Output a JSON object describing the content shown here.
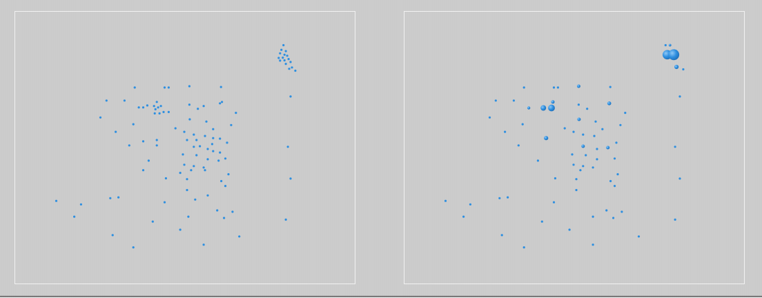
{
  "colors": {
    "background": "#cbcbcb",
    "frame": "#f2f2f2",
    "point": "#2e8fe0",
    "point_dark": "#1f6fb8",
    "point_highlight": "#8fc8f5"
  },
  "chart_data": [
    {
      "type": "scatter",
      "panel": "left",
      "title": "",
      "xlabel": "",
      "ylabel": "",
      "xlim": [
        0,
        100
      ],
      "ylim": [
        0,
        100
      ],
      "grid": false,
      "legend": "none",
      "points": [
        {
          "x": 79.0,
          "y": 87.7
        },
        {
          "x": 78.4,
          "y": 86.0
        },
        {
          "x": 79.7,
          "y": 85.5
        },
        {
          "x": 78.0,
          "y": 84.7
        },
        {
          "x": 79.3,
          "y": 84.2
        },
        {
          "x": 80.1,
          "y": 83.8
        },
        {
          "x": 78.8,
          "y": 83.1
        },
        {
          "x": 77.6,
          "y": 83.0
        },
        {
          "x": 80.5,
          "y": 82.6
        },
        {
          "x": 79.3,
          "y": 82.1
        },
        {
          "x": 78.0,
          "y": 82.0
        },
        {
          "x": 81.1,
          "y": 81.5
        },
        {
          "x": 79.7,
          "y": 80.8
        },
        {
          "x": 81.5,
          "y": 79.5
        },
        {
          "x": 80.7,
          "y": 79.0
        },
        {
          "x": 82.5,
          "y": 78.3
        },
        {
          "x": 81.1,
          "y": 68.8
        },
        {
          "x": 80.3,
          "y": 50.3
        },
        {
          "x": 81.1,
          "y": 38.6
        },
        {
          "x": 79.7,
          "y": 23.5
        },
        {
          "x": 35.2,
          "y": 72.1
        },
        {
          "x": 44.0,
          "y": 72.1
        },
        {
          "x": 45.2,
          "y": 72.1
        },
        {
          "x": 51.3,
          "y": 72.6
        },
        {
          "x": 60.6,
          "y": 72.3
        },
        {
          "x": 26.9,
          "y": 67.3
        },
        {
          "x": 32.2,
          "y": 67.3
        },
        {
          "x": 36.4,
          "y": 64.8
        },
        {
          "x": 37.7,
          "y": 64.8
        },
        {
          "x": 38.9,
          "y": 65.5
        },
        {
          "x": 40.9,
          "y": 65.3
        },
        {
          "x": 41.7,
          "y": 66.8
        },
        {
          "x": 42.9,
          "y": 65.3
        },
        {
          "x": 41.3,
          "y": 64.1
        },
        {
          "x": 42.1,
          "y": 64.8
        },
        {
          "x": 41.1,
          "y": 62.6
        },
        {
          "x": 42.5,
          "y": 62.6
        },
        {
          "x": 43.7,
          "y": 63.1
        },
        {
          "x": 45.2,
          "y": 63.1
        },
        {
          "x": 51.3,
          "y": 65.8
        },
        {
          "x": 53.8,
          "y": 64.3
        },
        {
          "x": 55.5,
          "y": 65.3
        },
        {
          "x": 60.3,
          "y": 66.3
        },
        {
          "x": 60.9,
          "y": 66.8
        },
        {
          "x": 65.0,
          "y": 62.8
        },
        {
          "x": 25.1,
          "y": 61.1
        },
        {
          "x": 51.4,
          "y": 60.4
        },
        {
          "x": 56.3,
          "y": 59.6
        },
        {
          "x": 34.8,
          "y": 58.6
        },
        {
          "x": 47.2,
          "y": 57.1
        },
        {
          "x": 58.3,
          "y": 56.8
        },
        {
          "x": 63.6,
          "y": 58.3
        },
        {
          "x": 29.6,
          "y": 55.8
        },
        {
          "x": 49.8,
          "y": 55.8
        },
        {
          "x": 52.6,
          "y": 54.8
        },
        {
          "x": 55.9,
          "y": 54.3
        },
        {
          "x": 58.3,
          "y": 53.5
        },
        {
          "x": 60.3,
          "y": 53.3
        },
        {
          "x": 37.7,
          "y": 52.3
        },
        {
          "x": 41.7,
          "y": 52.8
        },
        {
          "x": 53.4,
          "y": 52.8
        },
        {
          "x": 58.0,
          "y": 51.3
        },
        {
          "x": 62.4,
          "y": 51.8
        },
        {
          "x": 33.6,
          "y": 50.8
        },
        {
          "x": 41.7,
          "y": 50.8
        },
        {
          "x": 50.6,
          "y": 52.8
        },
        {
          "x": 52.6,
          "y": 50.3
        },
        {
          "x": 54.4,
          "y": 50.5
        },
        {
          "x": 56.7,
          "y": 49.5
        },
        {
          "x": 58.3,
          "y": 48.7
        },
        {
          "x": 60.3,
          "y": 48.2
        },
        {
          "x": 49.4,
          "y": 47.5
        },
        {
          "x": 53.4,
          "y": 47.2
        },
        {
          "x": 56.7,
          "y": 45.7
        },
        {
          "x": 59.9,
          "y": 45.2
        },
        {
          "x": 61.9,
          "y": 46.0
        },
        {
          "x": 39.3,
          "y": 45.2
        },
        {
          "x": 49.8,
          "y": 43.7
        },
        {
          "x": 52.6,
          "y": 43.2
        },
        {
          "x": 55.5,
          "y": 42.7
        },
        {
          "x": 37.7,
          "y": 41.7
        },
        {
          "x": 51.8,
          "y": 41.7
        },
        {
          "x": 55.9,
          "y": 41.7
        },
        {
          "x": 48.6,
          "y": 40.7
        },
        {
          "x": 62.8,
          "y": 40.2
        },
        {
          "x": 44.4,
          "y": 38.7
        },
        {
          "x": 50.6,
          "y": 38.4
        },
        {
          "x": 60.7,
          "y": 37.7
        },
        {
          "x": 61.9,
          "y": 35.9
        },
        {
          "x": 50.6,
          "y": 34.4
        },
        {
          "x": 56.7,
          "y": 32.4
        },
        {
          "x": 53.0,
          "y": 30.9
        },
        {
          "x": 59.5,
          "y": 26.9
        },
        {
          "x": 12.1,
          "y": 30.4
        },
        {
          "x": 19.4,
          "y": 29.1
        },
        {
          "x": 28.0,
          "y": 31.4
        },
        {
          "x": 30.4,
          "y": 31.7
        },
        {
          "x": 44.0,
          "y": 29.9
        },
        {
          "x": 64.0,
          "y": 26.4
        },
        {
          "x": 17.4,
          "y": 24.6
        },
        {
          "x": 40.5,
          "y": 22.8
        },
        {
          "x": 51.0,
          "y": 24.6
        },
        {
          "x": 61.5,
          "y": 24.1
        },
        {
          "x": 48.6,
          "y": 19.8
        },
        {
          "x": 28.7,
          "y": 17.8
        },
        {
          "x": 66.0,
          "y": 17.3
        },
        {
          "x": 34.8,
          "y": 13.3
        },
        {
          "x": 55.5,
          "y": 14.3
        }
      ]
    },
    {
      "type": "scatter",
      "panel": "right",
      "title": "",
      "xlabel": "",
      "ylabel": "",
      "xlim": [
        0,
        100
      ],
      "ylim": [
        0,
        100
      ],
      "grid": false,
      "legend": "none",
      "points": [
        {
          "x": 76.9,
          "y": 87.7,
          "s": 1
        },
        {
          "x": 78.2,
          "y": 87.7,
          "s": 1.2
        },
        {
          "x": 77.4,
          "y": 84.2,
          "s": 4.5
        },
        {
          "x": 79.3,
          "y": 84.2,
          "s": 5.2
        },
        {
          "x": 80.1,
          "y": 79.7,
          "s": 2
        },
        {
          "x": 82.1,
          "y": 78.8,
          "s": 1
        },
        {
          "x": 81.1,
          "y": 68.8,
          "s": 1
        },
        {
          "x": 79.7,
          "y": 50.3,
          "s": 1
        },
        {
          "x": 81.1,
          "y": 38.6,
          "s": 1
        },
        {
          "x": 79.7,
          "y": 23.5,
          "s": 1
        },
        {
          "x": 35.2,
          "y": 72.1,
          "s": 1
        },
        {
          "x": 44.0,
          "y": 72.1,
          "s": 1
        },
        {
          "x": 45.2,
          "y": 72.1,
          "s": 1
        },
        {
          "x": 51.3,
          "y": 72.6,
          "s": 1.6
        },
        {
          "x": 60.6,
          "y": 72.3,
          "s": 1
        },
        {
          "x": 26.9,
          "y": 67.3,
          "s": 1
        },
        {
          "x": 32.2,
          "y": 67.3,
          "s": 1
        },
        {
          "x": 36.6,
          "y": 64.6,
          "s": 1.4
        },
        {
          "x": 40.9,
          "y": 64.6,
          "s": 2.6
        },
        {
          "x": 43.3,
          "y": 64.6,
          "s": 3.2
        },
        {
          "x": 43.7,
          "y": 66.8,
          "s": 1.6
        },
        {
          "x": 51.3,
          "y": 65.8,
          "s": 1
        },
        {
          "x": 53.8,
          "y": 64.3,
          "s": 1
        },
        {
          "x": 60.3,
          "y": 66.3,
          "s": 1.8
        },
        {
          "x": 65.0,
          "y": 62.8,
          "s": 1
        },
        {
          "x": 25.1,
          "y": 61.1,
          "s": 1
        },
        {
          "x": 51.4,
          "y": 60.4,
          "s": 1.6
        },
        {
          "x": 56.3,
          "y": 59.6,
          "s": 1
        },
        {
          "x": 34.8,
          "y": 58.6,
          "s": 1
        },
        {
          "x": 47.2,
          "y": 57.1,
          "s": 1
        },
        {
          "x": 58.3,
          "y": 56.8,
          "s": 1
        },
        {
          "x": 63.6,
          "y": 58.3,
          "s": 1
        },
        {
          "x": 29.6,
          "y": 55.8,
          "s": 1
        },
        {
          "x": 49.8,
          "y": 55.8,
          "s": 1
        },
        {
          "x": 52.6,
          "y": 54.8,
          "s": 1
        },
        {
          "x": 55.9,
          "y": 54.3,
          "s": 1
        },
        {
          "x": 41.7,
          "y": 53.5,
          "s": 2
        },
        {
          "x": 62.4,
          "y": 51.8,
          "s": 1
        },
        {
          "x": 33.6,
          "y": 50.8,
          "s": 1
        },
        {
          "x": 52.6,
          "y": 50.5,
          "s": 1.6
        },
        {
          "x": 56.7,
          "y": 49.5,
          "s": 1
        },
        {
          "x": 59.9,
          "y": 50.0,
          "s": 1.6
        },
        {
          "x": 49.4,
          "y": 47.5,
          "s": 1
        },
        {
          "x": 53.4,
          "y": 47.2,
          "s": 1
        },
        {
          "x": 56.7,
          "y": 45.7,
          "s": 1
        },
        {
          "x": 61.9,
          "y": 46.0,
          "s": 1
        },
        {
          "x": 39.3,
          "y": 45.2,
          "s": 1
        },
        {
          "x": 49.8,
          "y": 43.7,
          "s": 1
        },
        {
          "x": 52.6,
          "y": 43.2,
          "s": 1
        },
        {
          "x": 55.5,
          "y": 42.7,
          "s": 1
        },
        {
          "x": 51.8,
          "y": 41.7,
          "s": 1
        },
        {
          "x": 62.8,
          "y": 40.2,
          "s": 1
        },
        {
          "x": 44.4,
          "y": 38.7,
          "s": 1
        },
        {
          "x": 50.6,
          "y": 38.4,
          "s": 1
        },
        {
          "x": 60.7,
          "y": 37.7,
          "s": 1
        },
        {
          "x": 61.9,
          "y": 35.9,
          "s": 1
        },
        {
          "x": 50.6,
          "y": 34.4,
          "s": 1
        },
        {
          "x": 59.5,
          "y": 26.9,
          "s": 1
        },
        {
          "x": 12.1,
          "y": 30.4,
          "s": 1
        },
        {
          "x": 19.4,
          "y": 29.1,
          "s": 1
        },
        {
          "x": 28.0,
          "y": 31.4,
          "s": 1
        },
        {
          "x": 30.4,
          "y": 31.7,
          "s": 1
        },
        {
          "x": 44.0,
          "y": 29.9,
          "s": 1
        },
        {
          "x": 64.0,
          "y": 26.4,
          "s": 1
        },
        {
          "x": 17.4,
          "y": 24.6,
          "s": 1
        },
        {
          "x": 40.5,
          "y": 22.8,
          "s": 1
        },
        {
          "x": 55.5,
          "y": 24.6,
          "s": 1
        },
        {
          "x": 61.5,
          "y": 24.1,
          "s": 1
        },
        {
          "x": 48.6,
          "y": 19.8,
          "s": 1
        },
        {
          "x": 28.7,
          "y": 17.8,
          "s": 1
        },
        {
          "x": 69.0,
          "y": 17.3,
          "s": 1
        },
        {
          "x": 35.2,
          "y": 13.3,
          "s": 1
        },
        {
          "x": 55.5,
          "y": 14.3,
          "s": 1
        }
      ]
    }
  ]
}
